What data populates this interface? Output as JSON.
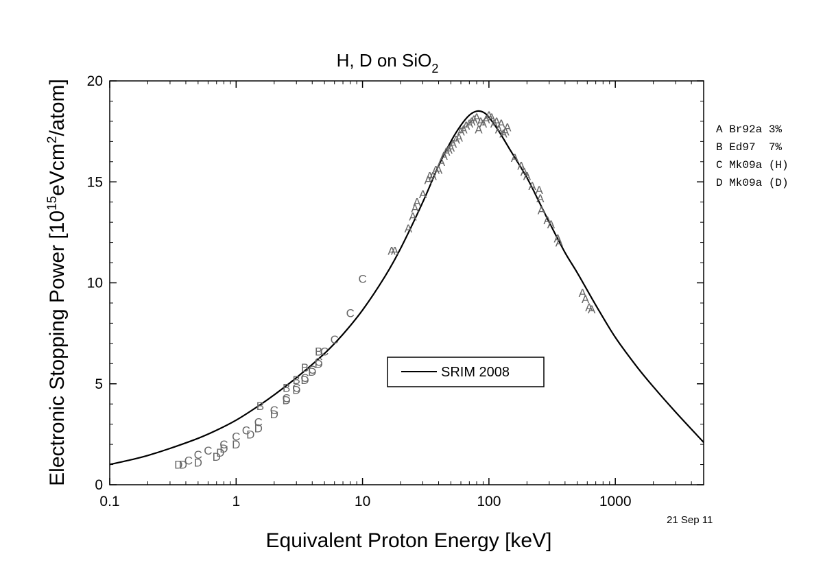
{
  "chart_data": {
    "type": "scatter",
    "title": "H, D on SiO",
    "title_subscript": "2",
    "xlabel": "Equivalent Proton Energy [keV]",
    "ylabel_parts": [
      "Electronic Stopping Power [10",
      "15",
      "eVcm",
      "2",
      "/atom]"
    ],
    "x_scale": "log",
    "xlim": [
      0.1,
      5000
    ],
    "ylim": [
      0,
      20
    ],
    "x_ticks": [
      0.1,
      1,
      10,
      100,
      1000
    ],
    "x_tick_labels": [
      "0.1",
      "1",
      "10",
      "100",
      "1000"
    ],
    "y_ticks": [
      0,
      5,
      10,
      15,
      20
    ],
    "y_tick_labels": [
      "0",
      "5",
      "10",
      "15",
      "20"
    ],
    "grid": false,
    "legend": {
      "position": "center",
      "entries": [
        "SRIM 2008"
      ]
    },
    "date_stamp": "21 Sep 11",
    "dataset_key": [
      "A Br92a 3%",
      "B Ed97  7%",
      "C Mk09a (H)",
      "D Mk09a (D)"
    ],
    "series": [
      {
        "name": "SRIM 2008",
        "kind": "line",
        "color": "#000000",
        "x": [
          0.1,
          0.15,
          0.2,
          0.3,
          0.5,
          0.7,
          1,
          1.5,
          2,
          3,
          5,
          7,
          10,
          15,
          20,
          30,
          40,
          50,
          60,
          70,
          80,
          90,
          100,
          120,
          150,
          200,
          250,
          300,
          400,
          500,
          700,
          1000,
          1500,
          2000,
          3000,
          5000
        ],
        "y": [
          1.0,
          1.25,
          1.45,
          1.8,
          2.3,
          2.7,
          3.2,
          3.9,
          4.45,
          5.3,
          6.5,
          7.45,
          8.65,
          10.3,
          11.7,
          14.0,
          15.8,
          17.0,
          17.8,
          18.3,
          18.5,
          18.45,
          18.2,
          17.5,
          16.5,
          15.2,
          14.0,
          13.0,
          11.5,
          10.5,
          8.9,
          7.3,
          5.8,
          4.85,
          3.6,
          2.1
        ]
      },
      {
        "name": "A",
        "kind": "markers",
        "marker": "A",
        "x": [
          17,
          18,
          23,
          25,
          26,
          27,
          30,
          33,
          34,
          36,
          38,
          40,
          42,
          44,
          46,
          48,
          50,
          52,
          55,
          58,
          60,
          63,
          66,
          70,
          73,
          76,
          80,
          83,
          86,
          90,
          95,
          100,
          105,
          110,
          115,
          120,
          125,
          130,
          135,
          140,
          160,
          180,
          190,
          200,
          220,
          250,
          255,
          260,
          290,
          310,
          350,
          360,
          550,
          580,
          620,
          650
        ],
        "y": [
          11.6,
          11.6,
          12.7,
          13.3,
          13.7,
          14.0,
          14.4,
          15.1,
          15.3,
          15.3,
          15.6,
          15.6,
          16.0,
          16.3,
          16.5,
          16.6,
          16.7,
          16.9,
          17.1,
          17.2,
          17.5,
          17.6,
          17.8,
          17.9,
          18.0,
          18.1,
          18.2,
          17.6,
          18.0,
          17.9,
          18.1,
          18.3,
          18.2,
          17.9,
          18.0,
          17.6,
          17.9,
          17.4,
          17.5,
          17.7,
          16.2,
          15.8,
          15.5,
          15.3,
          14.8,
          14.6,
          14.2,
          13.6,
          13.1,
          12.9,
          12.2,
          12.0,
          9.5,
          9.2,
          8.8,
          8.7
        ]
      },
      {
        "name": "B",
        "kind": "markers",
        "marker": "B",
        "x": [
          1.55,
          2.5,
          3.0,
          3.5,
          4.5
        ],
        "y": [
          3.9,
          4.8,
          5.2,
          5.8,
          6.6
        ]
      },
      {
        "name": "C",
        "kind": "markers",
        "marker": "C",
        "x": [
          0.42,
          0.5,
          0.6,
          0.8,
          1.0,
          1.2,
          1.5,
          2.0,
          2.5,
          3.0,
          3.5,
          4.0,
          4.5,
          5.0,
          6.0,
          8.0,
          10.0
        ],
        "y": [
          1.2,
          1.5,
          1.7,
          2.0,
          2.4,
          2.7,
          3.1,
          3.7,
          4.3,
          4.8,
          5.3,
          5.7,
          6.1,
          6.6,
          7.2,
          8.5,
          10.2
        ]
      },
      {
        "name": "D",
        "kind": "markers",
        "marker": "D",
        "x": [
          0.35,
          0.38,
          0.5,
          0.7,
          0.75,
          0.8,
          1.0,
          1.3,
          1.5,
          2.0,
          2.5,
          3.0,
          3.5,
          4.0,
          4.5
        ],
        "y": [
          1.0,
          1.0,
          1.1,
          1.4,
          1.6,
          1.8,
          2.0,
          2.5,
          2.8,
          3.5,
          4.2,
          4.7,
          5.2,
          5.6,
          6.0
        ]
      }
    ]
  }
}
